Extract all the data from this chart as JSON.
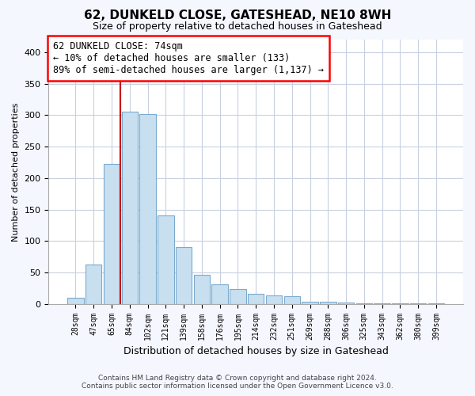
{
  "title": "62, DUNKELD CLOSE, GATESHEAD, NE10 8WH",
  "subtitle": "Size of property relative to detached houses in Gateshead",
  "xlabel": "Distribution of detached houses by size in Gateshead",
  "ylabel": "Number of detached properties",
  "bar_labels": [
    "28sqm",
    "47sqm",
    "65sqm",
    "84sqm",
    "102sqm",
    "121sqm",
    "139sqm",
    "158sqm",
    "176sqm",
    "195sqm",
    "214sqm",
    "232sqm",
    "251sqm",
    "269sqm",
    "288sqm",
    "306sqm",
    "325sqm",
    "343sqm",
    "362sqm",
    "380sqm",
    "399sqm"
  ],
  "bar_values": [
    10,
    63,
    222,
    305,
    302,
    140,
    90,
    46,
    31,
    24,
    16,
    14,
    12,
    4,
    3,
    2,
    1,
    1,
    1,
    1,
    1
  ],
  "bar_color": "#c8dff0",
  "bar_edgecolor": "#7aabcf",
  "vline_color": "#cc0000",
  "ylim": [
    0,
    420
  ],
  "yticks": [
    0,
    50,
    100,
    150,
    200,
    250,
    300,
    350,
    400
  ],
  "annotation_title": "62 DUNKELD CLOSE: 74sqm",
  "annotation_line1": "← 10% of detached houses are smaller (133)",
  "annotation_line2": "89% of semi-detached houses are larger (1,137) →",
  "footer1": "Contains HM Land Registry data © Crown copyright and database right 2024.",
  "footer2": "Contains public sector information licensed under the Open Government Licence v3.0.",
  "bg_color": "#f5f7ff",
  "plot_bg_color": "#ffffff",
  "grid_color": "#c8d0e0",
  "title_fontsize": 11,
  "subtitle_fontsize": 9,
  "ylabel_fontsize": 8,
  "xlabel_fontsize": 9,
  "tick_fontsize": 7,
  "footer_fontsize": 6.5
}
